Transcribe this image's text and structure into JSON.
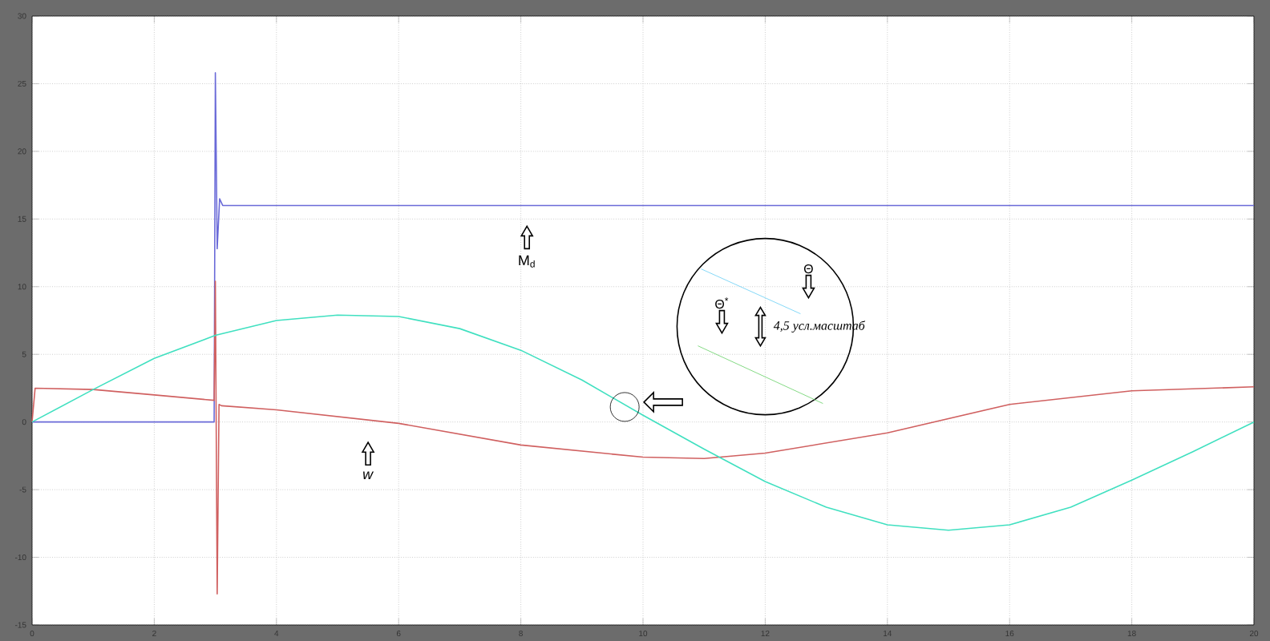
{
  "chart_data": {
    "type": "line",
    "xlim": [
      0,
      20
    ],
    "ylim": [
      -15,
      30
    ],
    "xticks": [
      0,
      2,
      4,
      6,
      8,
      10,
      12,
      14,
      16,
      18,
      20
    ],
    "yticks": [
      -15,
      -10,
      -5,
      0,
      5,
      10,
      15,
      20,
      25,
      30
    ],
    "grid": true,
    "line_style": "solid",
    "series": [
      {
        "color": "#6a6ad8",
        "x": [
          0,
          2.98,
          3.0,
          3.03,
          3.07,
          3.12,
          20
        ],
        "values": [
          0,
          0,
          25.8,
          12.8,
          16.5,
          16,
          16
        ]
      },
      {
        "color": "#d06060",
        "x": [
          0,
          0.05,
          1,
          2,
          2.98,
          3.0,
          3.03,
          3.06,
          3.1,
          4,
          6,
          8,
          10,
          11,
          12,
          14,
          16,
          18,
          20
        ],
        "values": [
          0,
          2.5,
          2.4,
          2.0,
          1.6,
          10.4,
          -12.7,
          1.3,
          1.2,
          0.9,
          -0.1,
          -1.7,
          -2.6,
          -2.7,
          -2.3,
          -0.8,
          1.3,
          2.3,
          2.6
        ]
      },
      {
        "color": "#40e0c0",
        "x": [
          0,
          1,
          2,
          3,
          4,
          5,
          6,
          7,
          8,
          9,
          10,
          11,
          12,
          13,
          14,
          15,
          16,
          17,
          18,
          19,
          20
        ],
        "values": [
          0,
          2.4,
          4.7,
          6.4,
          7.5,
          7.9,
          7.8,
          6.9,
          5.3,
          3.1,
          0.5,
          -2.0,
          -4.4,
          -6.3,
          -7.6,
          -8.0,
          -7.6,
          -6.3,
          -4.3,
          -2.2,
          0
        ]
      }
    ],
    "annotations": [
      "M$_{d}$",
      "*w*",
      "Θ",
      "Θ$^{*}$",
      "4,5 усл.масштаб"
    ]
  }
}
